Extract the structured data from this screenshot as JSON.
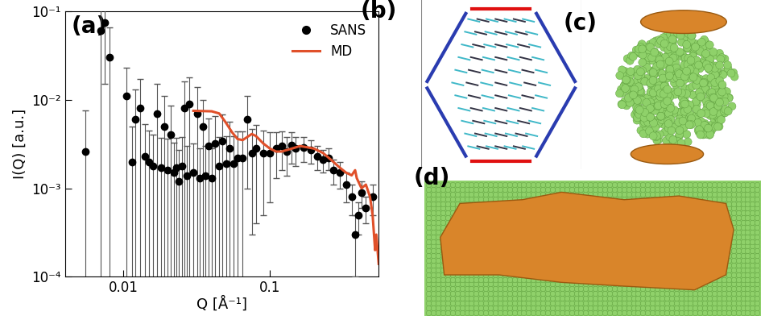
{
  "chart_data": {
    "type": "scatter",
    "title": "(a)",
    "x_label": "Q [Å⁻¹]",
    "y_label": "I(Q) [a.u.]",
    "log": true,
    "legend": "upper right",
    "xlim": [
      0.004,
      0.55
    ],
    "ylim": [
      0.0001,
      0.1
    ],
    "xticks": [
      0.01,
      0.1
    ],
    "yticks": [
      {
        "value": 0.0001,
        "label": "10⁻⁴"
      },
      {
        "value": 0.001,
        "label": "10⁻³"
      },
      {
        "value": 0.01,
        "label": "10⁻²"
      },
      {
        "value": 0.1,
        "label": "10⁻¹"
      }
    ],
    "series": [
      {
        "name": "SANS",
        "type": "scatter",
        "color": "#000000",
        "marker": "circle",
        "x": [
          0.0055,
          0.007,
          0.0075,
          0.008,
          0.0105,
          0.0115,
          0.012,
          0.013,
          0.014,
          0.015,
          0.016,
          0.017,
          0.018,
          0.019,
          0.02,
          0.021,
          0.022,
          0.023,
          0.024,
          0.025,
          0.026,
          0.027,
          0.028,
          0.03,
          0.032,
          0.033,
          0.035,
          0.036,
          0.038,
          0.04,
          0.042,
          0.045,
          0.047,
          0.05,
          0.053,
          0.056,
          0.06,
          0.065,
          0.07,
          0.075,
          0.08,
          0.09,
          0.1,
          0.11,
          0.12,
          0.13,
          0.14,
          0.15,
          0.17,
          0.19,
          0.21,
          0.23,
          0.25,
          0.27,
          0.3,
          0.33,
          0.36,
          0.38,
          0.4,
          0.42,
          0.45,
          0.5
        ],
        "values": [
          0.0026,
          0.06,
          0.075,
          0.03,
          0.011,
          0.002,
          0.006,
          0.008,
          0.0023,
          0.002,
          0.0018,
          0.007,
          0.0017,
          0.005,
          0.0016,
          0.004,
          0.0015,
          0.0017,
          0.0012,
          0.0018,
          0.008,
          0.0014,
          0.009,
          0.0015,
          0.007,
          0.0013,
          0.005,
          0.0014,
          0.003,
          0.0013,
          0.0032,
          0.0018,
          0.0034,
          0.0019,
          0.0028,
          0.0019,
          0.0022,
          0.0022,
          0.006,
          0.0025,
          0.0028,
          0.0025,
          0.0025,
          0.0028,
          0.003,
          0.0026,
          0.0031,
          0.0028,
          0.0029,
          0.0027,
          0.0023,
          0.0021,
          0.0022,
          0.0016,
          0.0015,
          0.0011,
          0.0008,
          0.0003,
          0.0005,
          0.0009,
          0.0006,
          0.0008
        ],
        "error": [
          0.005,
          0.07,
          0.06,
          0.035,
          0.012,
          0.003,
          0.007,
          0.009,
          0.003,
          0.0025,
          0.0022,
          0.008,
          0.002,
          0.006,
          0.002,
          0.0045,
          0.0018,
          0.002,
          0.0015,
          0.002,
          0.008,
          0.0016,
          0.009,
          0.0017,
          0.007,
          0.0015,
          0.005,
          0.0016,
          0.0032,
          0.0015,
          0.0033,
          0.002,
          0.0034,
          0.002,
          0.0028,
          0.002,
          0.0022,
          0.0022,
          0.005,
          0.0022,
          0.0024,
          0.002,
          0.0018,
          0.0015,
          0.0014,
          0.0012,
          0.0012,
          0.001,
          0.0009,
          0.0008,
          0.0007,
          0.0006,
          0.0006,
          0.0005,
          0.0005,
          0.0004,
          0.0003,
          0.0002,
          0.0002,
          0.0003,
          0.0002,
          0.0003
        ]
      },
      {
        "name": "MD",
        "type": "line",
        "color": "#e0502a",
        "line_style": "solid",
        "x": [
          0.03,
          0.04,
          0.045,
          0.05,
          0.055,
          0.06,
          0.065,
          0.07,
          0.075,
          0.08,
          0.09,
          0.1,
          0.11,
          0.12,
          0.14,
          0.16,
          0.18,
          0.2,
          0.23,
          0.26,
          0.3,
          0.33,
          0.36,
          0.38,
          0.39,
          0.42,
          0.45,
          0.48,
          0.5,
          0.52,
          0.53,
          0.55
        ],
        "values": [
          0.0075,
          0.0074,
          0.007,
          0.0055,
          0.0043,
          0.0036,
          0.0035,
          0.0038,
          0.0041,
          0.0039,
          0.0032,
          0.0028,
          0.0026,
          0.0026,
          0.0028,
          0.003,
          0.0029,
          0.0028,
          0.0025,
          0.0021,
          0.0017,
          0.0015,
          0.0014,
          0.0016,
          0.0013,
          0.001,
          0.0011,
          0.0008,
          0.0005,
          0.0002,
          0.0003,
          0.00014
        ]
      }
    ]
  },
  "panels": [
    {
      "label": "(b)"
    },
    {
      "label": "(c)"
    },
    {
      "label": "(d)"
    }
  ]
}
